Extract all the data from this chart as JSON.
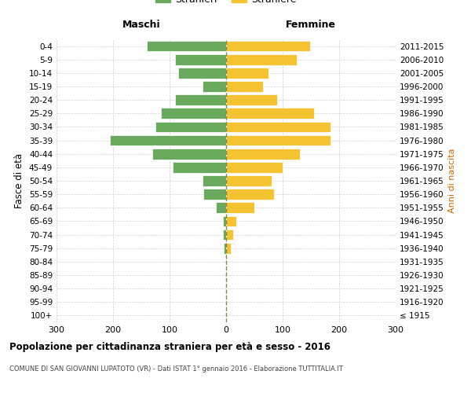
{
  "age_groups": [
    "100+",
    "95-99",
    "90-94",
    "85-89",
    "80-84",
    "75-79",
    "70-74",
    "65-69",
    "60-64",
    "55-59",
    "50-54",
    "45-49",
    "40-44",
    "35-39",
    "30-34",
    "25-29",
    "20-24",
    "15-19",
    "10-14",
    "5-9",
    "0-4"
  ],
  "birth_years": [
    "≤ 1915",
    "1916-1920",
    "1921-1925",
    "1926-1930",
    "1931-1935",
    "1936-1940",
    "1941-1945",
    "1946-1950",
    "1951-1955",
    "1956-1960",
    "1961-1965",
    "1966-1970",
    "1971-1975",
    "1976-1980",
    "1981-1985",
    "1986-1990",
    "1991-1995",
    "1996-2000",
    "2001-2005",
    "2006-2010",
    "2011-2015"
  ],
  "males": [
    0,
    0,
    0,
    0,
    0,
    4,
    5,
    5,
    18,
    40,
    42,
    95,
    130,
    205,
    125,
    115,
    90,
    42,
    85,
    90,
    140
  ],
  "females": [
    0,
    0,
    0,
    0,
    0,
    8,
    12,
    18,
    50,
    85,
    80,
    100,
    130,
    185,
    185,
    155,
    90,
    65,
    75,
    125,
    148
  ],
  "male_color": "#6aaa5e",
  "female_color": "#f5c231",
  "background_color": "#ffffff",
  "grid_color": "#d0d0d0",
  "dashed_line_color": "#888844",
  "xlim": 300,
  "title": "Popolazione per cittadinanza straniera per età e sesso - 2016",
  "subtitle": "COMUNE DI SAN GIOVANNI LUPATOTO (VR) - Dati ISTAT 1° gennaio 2016 - Elaborazione TUTTITALIA.IT",
  "ylabel_left": "Fasce di età",
  "ylabel_right": "Anni di nascita",
  "legend_male": "Stranieri",
  "legend_female": "Straniere",
  "header_left": "Maschi",
  "header_right": "Femmine"
}
